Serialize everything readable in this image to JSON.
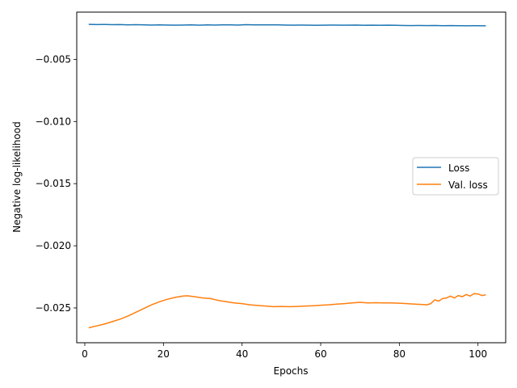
{
  "chart_data": {
    "type": "line",
    "title": "",
    "xlabel": "Epochs",
    "ylabel": "Negative log-likelihood",
    "xlim": [
      -2.05,
      107.05
    ],
    "ylim": [
      -0.0278,
      -0.0012
    ],
    "xticks": [
      0,
      20,
      40,
      60,
      80,
      100
    ],
    "xtick_labels": [
      "0",
      "20",
      "40",
      "60",
      "80",
      "100"
    ],
    "yticks": [
      -0.005,
      -0.01,
      -0.015,
      -0.02,
      -0.025
    ],
    "ytick_labels": [
      "−0.005",
      "−0.010",
      "−0.015",
      "−0.020",
      "−0.025"
    ],
    "grid": false,
    "legend_position": "center-right",
    "series": [
      {
        "name": "Loss",
        "color": "#1f77b4",
        "points": [
          [
            1,
            -0.00218
          ],
          [
            3,
            -0.0022
          ],
          [
            5,
            -0.00219
          ],
          [
            7,
            -0.00221
          ],
          [
            9,
            -0.0022
          ],
          [
            11,
            -0.00222
          ],
          [
            13,
            -0.00221
          ],
          [
            15,
            -0.00222
          ],
          [
            17,
            -0.00224
          ],
          [
            19,
            -0.00223
          ],
          [
            21,
            -0.00224
          ],
          [
            23,
            -0.00225
          ],
          [
            25,
            -0.00224
          ],
          [
            27,
            -0.00223
          ],
          [
            29,
            -0.00225
          ],
          [
            31,
            -0.00223
          ],
          [
            33,
            -0.00224
          ],
          [
            35,
            -0.00222
          ],
          [
            37,
            -0.00223
          ],
          [
            39,
            -0.00224
          ],
          [
            41,
            -0.00221
          ],
          [
            43,
            -0.00222
          ],
          [
            45,
            -0.00223
          ],
          [
            47,
            -0.00222
          ],
          [
            49,
            -0.00223
          ],
          [
            51,
            -0.00224
          ],
          [
            53,
            -0.00225
          ],
          [
            55,
            -0.00224
          ],
          [
            57,
            -0.00225
          ],
          [
            59,
            -0.00226
          ],
          [
            61,
            -0.00225
          ],
          [
            63,
            -0.00224
          ],
          [
            65,
            -0.00225
          ],
          [
            67,
            -0.00225
          ],
          [
            69,
            -0.00224
          ],
          [
            71,
            -0.00226
          ],
          [
            73,
            -0.00225
          ],
          [
            75,
            -0.00226
          ],
          [
            77,
            -0.00225
          ],
          [
            79,
            -0.00226
          ],
          [
            81,
            -0.00227
          ],
          [
            83,
            -0.00228
          ],
          [
            85,
            -0.00227
          ],
          [
            87,
            -0.00228
          ],
          [
            89,
            -0.00227
          ],
          [
            91,
            -0.00229
          ],
          [
            93,
            -0.00228
          ],
          [
            95,
            -0.00229
          ],
          [
            97,
            -0.0023
          ],
          [
            99,
            -0.00229
          ],
          [
            101,
            -0.0023
          ],
          [
            102,
            -0.0023
          ]
        ]
      },
      {
        "name": "Val. loss",
        "color": "#ff7f0e",
        "points": [
          [
            1,
            -0.0266
          ],
          [
            3,
            -0.02645
          ],
          [
            5,
            -0.0263
          ],
          [
            7,
            -0.0261
          ],
          [
            9,
            -0.0259
          ],
          [
            11,
            -0.02565
          ],
          [
            13,
            -0.02535
          ],
          [
            15,
            -0.02505
          ],
          [
            17,
            -0.02475
          ],
          [
            19,
            -0.0245
          ],
          [
            21,
            -0.0243
          ],
          [
            23,
            -0.02415
          ],
          [
            25,
            -0.02405
          ],
          [
            26,
            -0.02402
          ],
          [
            28,
            -0.0241
          ],
          [
            30,
            -0.0242
          ],
          [
            32,
            -0.02425
          ],
          [
            34,
            -0.0244
          ],
          [
            36,
            -0.0245
          ],
          [
            38,
            -0.0246
          ],
          [
            40,
            -0.02465
          ],
          [
            42,
            -0.02475
          ],
          [
            44,
            -0.0248
          ],
          [
            46,
            -0.02485
          ],
          [
            48,
            -0.0249
          ],
          [
            50,
            -0.02488
          ],
          [
            52,
            -0.0249
          ],
          [
            54,
            -0.02488
          ],
          [
            56,
            -0.02485
          ],
          [
            58,
            -0.02483
          ],
          [
            60,
            -0.02478
          ],
          [
            62,
            -0.02475
          ],
          [
            64,
            -0.0247
          ],
          [
            66,
            -0.02465
          ],
          [
            68,
            -0.0246
          ],
          [
            70,
            -0.02455
          ],
          [
            72,
            -0.0246
          ],
          [
            74,
            -0.02458
          ],
          [
            76,
            -0.0246
          ],
          [
            78,
            -0.0246
          ],
          [
            80,
            -0.02462
          ],
          [
            82,
            -0.02465
          ],
          [
            84,
            -0.0247
          ],
          [
            86,
            -0.02473
          ],
          [
            87,
            -0.02475
          ],
          [
            88,
            -0.02465
          ],
          [
            89,
            -0.02435
          ],
          [
            90,
            -0.02445
          ],
          [
            91,
            -0.02425
          ],
          [
            92,
            -0.0242
          ],
          [
            93,
            -0.02405
          ],
          [
            94,
            -0.0242
          ],
          [
            95,
            -0.024
          ],
          [
            96,
            -0.0241
          ],
          [
            97,
            -0.02392
          ],
          [
            98,
            -0.02405
          ],
          [
            99,
            -0.02385
          ],
          [
            100,
            -0.02388
          ],
          [
            101,
            -0.024
          ],
          [
            102,
            -0.02395
          ]
        ]
      }
    ]
  }
}
